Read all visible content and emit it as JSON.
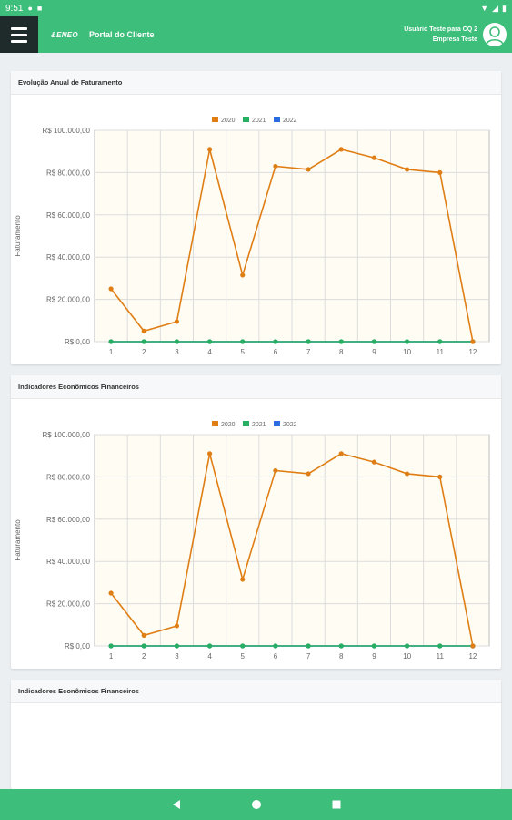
{
  "status_bar": {
    "time": "9:51"
  },
  "app_bar": {
    "logo": "&ENEO",
    "title": "Portal do Cliente",
    "user_name": "Usuário Teste para CQ 2",
    "company": "Empresa Teste"
  },
  "cards": [
    {
      "title": "Evolução Anual de Faturamento"
    },
    {
      "title": "Indicadores Econômicos Financeiros"
    },
    {
      "title": "Indicadores Econômicos Financeiros"
    }
  ],
  "colors": {
    "brand": "#3dbe7a",
    "series_2020": "#e07e16",
    "series_2021": "#27ae60",
    "series_2022": "#2b6ce0",
    "plot_bg": "#fffdf3"
  },
  "icons": [
    "menu-icon",
    "user-avatar-icon",
    "back-icon",
    "home-icon",
    "recents-icon"
  ],
  "chart_data": [
    {
      "type": "line",
      "ylabel": "Faturamento",
      "xlabel": "",
      "x": [
        1,
        2,
        3,
        4,
        5,
        6,
        7,
        8,
        9,
        10,
        11,
        12
      ],
      "ylim": [
        0,
        100000
      ],
      "y_ticks": [
        "R$ 0,00",
        "R$ 20.000,00",
        "R$ 40.000,00",
        "R$ 60.000,00",
        "R$ 80.000,00",
        "R$ 100.000,00"
      ],
      "legend_position": "top",
      "grid": true,
      "series": [
        {
          "name": "2020",
          "values": [
            25000,
            5000,
            9500,
            91000,
            31500,
            83000,
            81500,
            91000,
            87000,
            81500,
            80000,
            0
          ]
        },
        {
          "name": "2021",
          "values": [
            0,
            0,
            0,
            0,
            0,
            0,
            0,
            0,
            0,
            0,
            0,
            0
          ]
        },
        {
          "name": "2022",
          "values": [
            0,
            0,
            0,
            0,
            0,
            0,
            0,
            0,
            0,
            0,
            0,
            0
          ]
        }
      ]
    },
    {
      "type": "line",
      "ylabel": "Faturamento",
      "xlabel": "",
      "x": [
        1,
        2,
        3,
        4,
        5,
        6,
        7,
        8,
        9,
        10,
        11,
        12
      ],
      "ylim": [
        0,
        100000
      ],
      "y_ticks": [
        "R$ 0,00",
        "R$ 20.000,00",
        "R$ 40.000,00",
        "R$ 60.000,00",
        "R$ 80.000,00",
        "R$ 100.000,00"
      ],
      "legend_position": "top",
      "grid": true,
      "series": [
        {
          "name": "2020",
          "values": [
            25000,
            5000,
            9500,
            91000,
            31500,
            83000,
            81500,
            91000,
            87000,
            81500,
            80000,
            0
          ]
        },
        {
          "name": "2021",
          "values": [
            0,
            0,
            0,
            0,
            0,
            0,
            0,
            0,
            0,
            0,
            0,
            0
          ]
        },
        {
          "name": "2022",
          "values": [
            0,
            0,
            0,
            0,
            0,
            0,
            0,
            0,
            0,
            0,
            0,
            0
          ]
        }
      ]
    }
  ]
}
